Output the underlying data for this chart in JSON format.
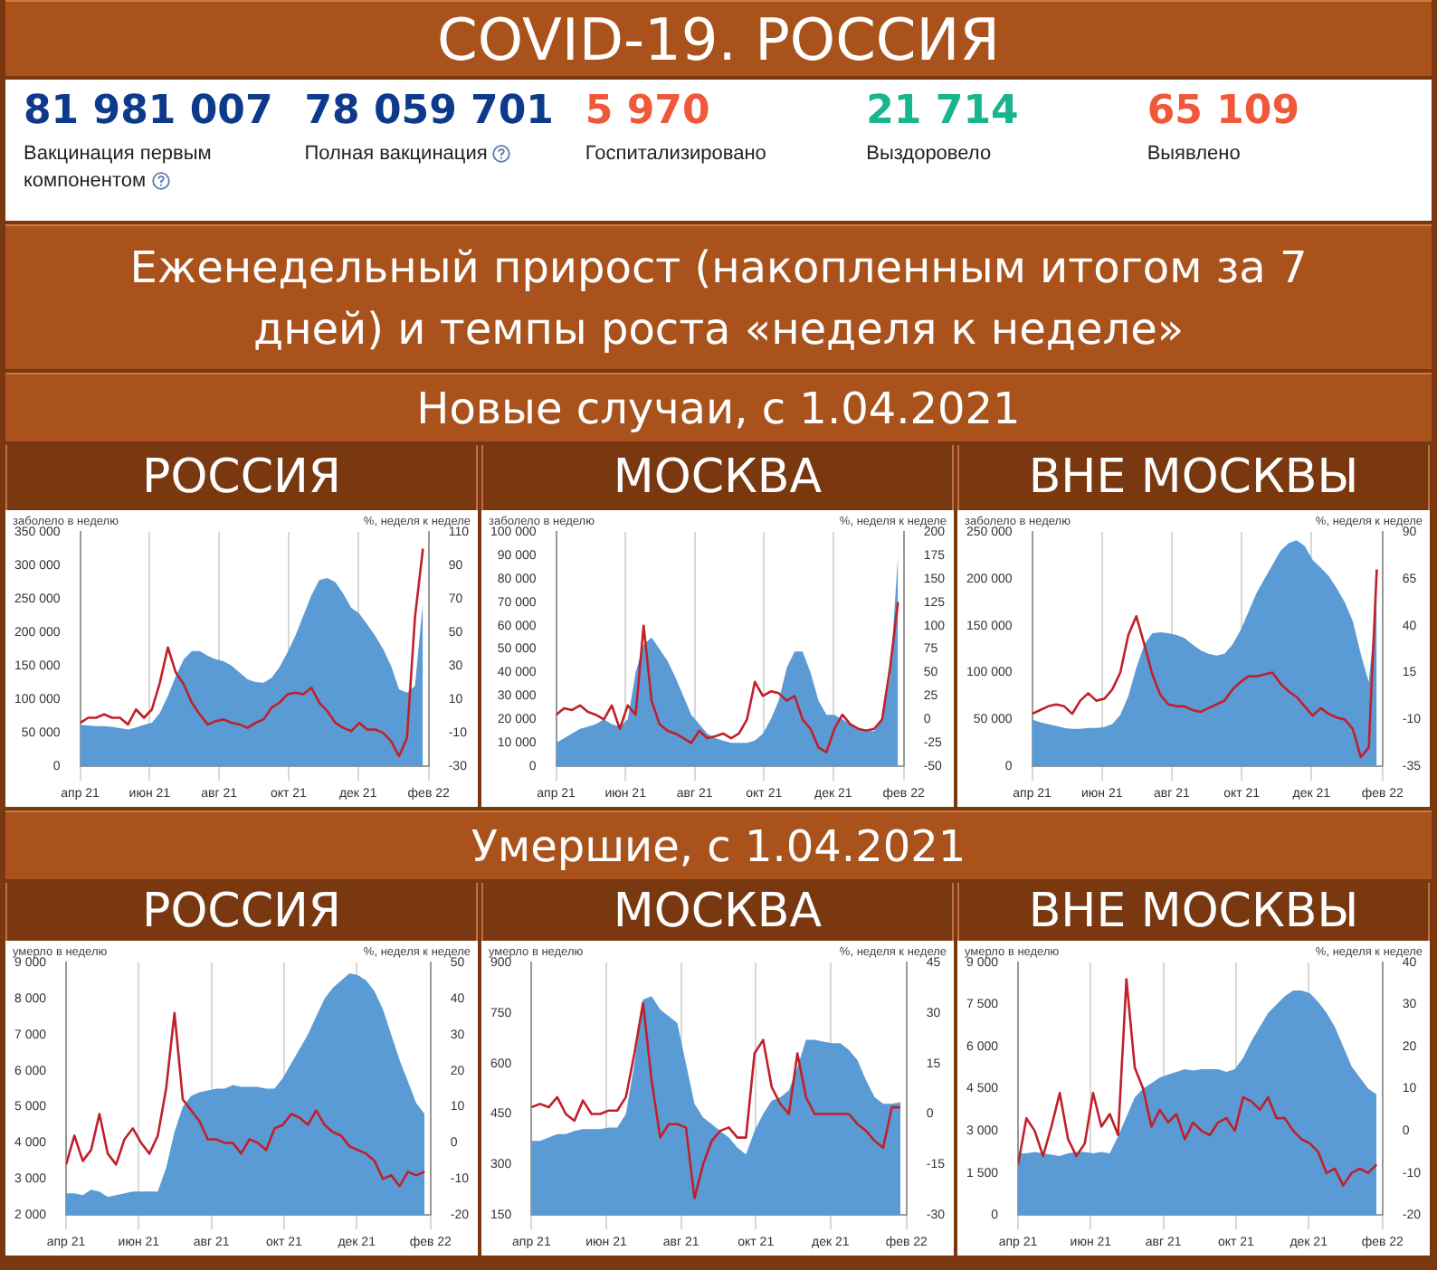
{
  "chart_data": [
    {
      "type": "other",
      "title": "COVID-19. РОССИЯ",
      "annotations": [
        "81 981 007",
        "Вакцинация первым компонентом",
        "78 059 701",
        "Полная вакцинация",
        "5 970",
        "Госпитализировано",
        "21 714",
        "Выздоровело",
        "65 109",
        "Выявлено"
      ],
      "colors": [
        "#0e3a8c",
        "#0e3a8c",
        "#f0583a",
        "#17b48e",
        "#f0583a"
      ],
      "subtitle": "Еженедельный прирост (накопленным итогом за 7 дней) и темпы роста «неделя к неделе»"
    },
    {
      "type": "other",
      "title": "Новые случаи, с 1.04.2021"
    },
    {
      "type": "area",
      "title": "РОССИЯ",
      "ylabel": "заболело в неделю",
      "y2label": "%, неделя к неделе",
      "grid": "x",
      "x": [
        "2021-04-01",
        "2021-04-08",
        "2021-04-15",
        "2021-04-22",
        "2021-04-29",
        "2021-05-06",
        "2021-05-13",
        "2021-05-20",
        "2021-05-27",
        "2021-06-03",
        "2021-06-10",
        "2021-06-17",
        "2021-06-24",
        "2021-07-01",
        "2021-07-08",
        "2021-07-15",
        "2021-07-22",
        "2021-07-29",
        "2021-08-05",
        "2021-08-12",
        "2021-08-19",
        "2021-08-26",
        "2021-09-02",
        "2021-09-09",
        "2021-09-16",
        "2021-09-23",
        "2021-09-30",
        "2021-10-07",
        "2021-10-14",
        "2021-10-21",
        "2021-10-28",
        "2021-11-04",
        "2021-11-11",
        "2021-11-18",
        "2021-11-25",
        "2021-12-02",
        "2021-12-09",
        "2021-12-16",
        "2021-12-23",
        "2021-12-30",
        "2022-01-06",
        "2022-01-13",
        "2022-01-20",
        "2022-01-27"
      ],
      "xlim": [
        "2021-04-01",
        "2022-02-01"
      ],
      "xticks": [
        {
          "value": "2021-04-01",
          "label": "апр 21"
        },
        {
          "value": "2021-06-01",
          "label": "июн 21"
        },
        {
          "value": "2021-08-01",
          "label": "авг 21"
        },
        {
          "value": "2021-10-01",
          "label": "окт 21"
        },
        {
          "value": "2021-12-01",
          "label": "дек 21"
        },
        {
          "value": "2022-02-01",
          "label": "фев 22"
        }
      ],
      "ylim": [
        0,
        350000
      ],
      "yticks": [
        0,
        {
          "value": 50000,
          "label": "50 000"
        },
        {
          "value": 100000,
          "label": "100 000"
        },
        {
          "value": 150000,
          "label": "150 000"
        },
        {
          "value": 200000,
          "label": "200 000"
        },
        {
          "value": 250000,
          "label": "250 000"
        },
        {
          "value": 300000,
          "label": "300 000"
        },
        {
          "value": 350000,
          "label": "350 000"
        }
      ],
      "y2lim": [
        -30,
        110
      ],
      "y2ticks": [
        -30,
        -10,
        10,
        30,
        50,
        70,
        90,
        110
      ],
      "series": [
        {
          "type": "area",
          "color": "#5b9bd5",
          "values": [
            62000,
            61000,
            60000,
            60000,
            59000,
            57000,
            55000,
            58000,
            62000,
            65000,
            80000,
            105000,
            135000,
            160000,
            172000,
            172000,
            165000,
            160000,
            157000,
            150000,
            140000,
            130000,
            126000,
            125000,
            132000,
            148000,
            170000,
            195000,
            225000,
            255000,
            278000,
            281000,
            275000,
            258000,
            237000,
            228000,
            212000,
            195000,
            175000,
            150000,
            115000,
            110000,
            120000,
            245000
          ]
        },
        {
          "type": "line",
          "axis": "y2",
          "color": "#c0202a",
          "values": [
            -4,
            -1,
            -1,
            1,
            -1,
            -1,
            -5,
            4,
            -1,
            4,
            20,
            41,
            26,
            19,
            8,
            1,
            -5,
            -3,
            -2,
            -4,
            -5,
            -7,
            -4,
            -2,
            5,
            8,
            13,
            14,
            13,
            17,
            8,
            3,
            -4,
            -7,
            -9,
            -4,
            -8,
            -8,
            -10,
            -15,
            -24,
            -13,
            59,
            100
          ]
        }
      ]
    },
    {
      "type": "area",
      "title": "МОСКВА",
      "ylabel": "заболело в неделю",
      "y2label": "%, неделя к неделе",
      "grid": "x",
      "x": [
        "2021-04-01",
        "2021-04-08",
        "2021-04-15",
        "2021-04-22",
        "2021-04-29",
        "2021-05-06",
        "2021-05-13",
        "2021-05-20",
        "2021-05-27",
        "2021-06-03",
        "2021-06-10",
        "2021-06-17",
        "2021-06-24",
        "2021-07-01",
        "2021-07-08",
        "2021-07-15",
        "2021-07-22",
        "2021-07-29",
        "2021-08-05",
        "2021-08-12",
        "2021-08-19",
        "2021-08-26",
        "2021-09-02",
        "2021-09-09",
        "2021-09-16",
        "2021-09-23",
        "2021-09-30",
        "2021-10-07",
        "2021-10-14",
        "2021-10-21",
        "2021-10-28",
        "2021-11-04",
        "2021-11-11",
        "2021-11-18",
        "2021-11-25",
        "2021-12-02",
        "2021-12-09",
        "2021-12-16",
        "2021-12-23",
        "2021-12-30",
        "2022-01-06",
        "2022-01-13",
        "2022-01-20",
        "2022-01-27"
      ],
      "xlim": [
        "2021-04-01",
        "2022-02-01"
      ],
      "xticks": [
        {
          "value": "2021-04-01",
          "label": "апр 21"
        },
        {
          "value": "2021-06-01",
          "label": "июн 21"
        },
        {
          "value": "2021-08-01",
          "label": "авг 21"
        },
        {
          "value": "2021-10-01",
          "label": "окт 21"
        },
        {
          "value": "2021-12-01",
          "label": "дек 21"
        },
        {
          "value": "2022-02-01",
          "label": "фев 22"
        }
      ],
      "ylim": [
        0,
        100000
      ],
      "yticks": [
        0,
        {
          "value": 10000,
          "label": "10 000"
        },
        {
          "value": 20000,
          "label": "20 000"
        },
        {
          "value": 30000,
          "label": "30 000"
        },
        {
          "value": 40000,
          "label": "40 000"
        },
        {
          "value": 50000,
          "label": "50 000"
        },
        {
          "value": 60000,
          "label": "60 000"
        },
        {
          "value": 70000,
          "label": "70 000"
        },
        {
          "value": 80000,
          "label": "80 000"
        },
        {
          "value": 90000,
          "label": "90 000"
        },
        {
          "value": 100000,
          "label": "100 000"
        }
      ],
      "y2lim": [
        -50,
        200
      ],
      "y2ticks": [
        -50,
        -25,
        0,
        25,
        50,
        75,
        100,
        125,
        150,
        175,
        200
      ],
      "series": [
        {
          "type": "area",
          "color": "#5b9bd5",
          "values": [
            10000,
            12000,
            14000,
            16000,
            17000,
            18000,
            20000,
            18000,
            17000,
            20000,
            40000,
            52000,
            55000,
            50000,
            45000,
            38000,
            30000,
            22000,
            18000,
            14000,
            12000,
            11000,
            10000,
            10000,
            10000,
            11000,
            14000,
            20000,
            28000,
            42000,
            49000,
            49000,
            40000,
            28000,
            22000,
            22000,
            20000,
            18000,
            16000,
            15000,
            15000,
            20000,
            38000,
            90000
          ]
        },
        {
          "type": "line",
          "axis": "y2",
          "color": "#c0202a",
          "values": [
            5,
            12,
            10,
            15,
            8,
            5,
            0,
            15,
            -10,
            15,
            5,
            100,
            20,
            -5,
            -12,
            -15,
            -20,
            -25,
            -12,
            -20,
            -18,
            -15,
            -20,
            -15,
            0,
            40,
            25,
            30,
            28,
            20,
            25,
            0,
            -10,
            -30,
            -35,
            -10,
            5,
            -5,
            -10,
            -12,
            -10,
            0,
            55,
            125
          ]
        }
      ]
    },
    {
      "type": "area",
      "title": "ВНЕ МОСКВЫ",
      "ylabel": "заболело в неделю",
      "y2label": "%, неделя к неделе",
      "grid": "x",
      "x": [
        "2021-04-01",
        "2021-04-08",
        "2021-04-15",
        "2021-04-22",
        "2021-04-29",
        "2021-05-06",
        "2021-05-13",
        "2021-05-20",
        "2021-05-27",
        "2021-06-03",
        "2021-06-10",
        "2021-06-17",
        "2021-06-24",
        "2021-07-01",
        "2021-07-08",
        "2021-07-15",
        "2021-07-22",
        "2021-07-29",
        "2021-08-05",
        "2021-08-12",
        "2021-08-19",
        "2021-08-26",
        "2021-09-02",
        "2021-09-09",
        "2021-09-16",
        "2021-09-23",
        "2021-09-30",
        "2021-10-07",
        "2021-10-14",
        "2021-10-21",
        "2021-10-28",
        "2021-11-04",
        "2021-11-11",
        "2021-11-18",
        "2021-11-25",
        "2021-12-02",
        "2021-12-09",
        "2021-12-16",
        "2021-12-23",
        "2021-12-30",
        "2022-01-06",
        "2022-01-13",
        "2022-01-20",
        "2022-01-27"
      ],
      "xlim": [
        "2021-04-01",
        "2022-02-01"
      ],
      "xticks": [
        {
          "value": "2021-04-01",
          "label": "апр 21"
        },
        {
          "value": "2021-06-01",
          "label": "июн 21"
        },
        {
          "value": "2021-08-01",
          "label": "авг 21"
        },
        {
          "value": "2021-10-01",
          "label": "окт 21"
        },
        {
          "value": "2021-12-01",
          "label": "дек 21"
        },
        {
          "value": "2022-02-01",
          "label": "фев 22"
        }
      ],
      "ylim": [
        0,
        250000
      ],
      "yticks": [
        0,
        {
          "value": 50000,
          "label": "50 000"
        },
        {
          "value": 100000,
          "label": "100 000"
        },
        {
          "value": 150000,
          "label": "150 000"
        },
        {
          "value": 200000,
          "label": "200 000"
        },
        {
          "value": 250000,
          "label": "250 000"
        }
      ],
      "y2lim": [
        -35,
        90
      ],
      "y2ticks": [
        -35,
        -10,
        15,
        40,
        65,
        90
      ],
      "series": [
        {
          "type": "area",
          "color": "#5b9bd5",
          "values": [
            50000,
            47000,
            45000,
            43000,
            41000,
            40000,
            40000,
            41000,
            41000,
            42000,
            45000,
            55000,
            75000,
            105000,
            130000,
            142000,
            143000,
            142000,
            140000,
            137000,
            130000,
            124000,
            120000,
            118000,
            120000,
            130000,
            145000,
            165000,
            185000,
            200000,
            215000,
            230000,
            238000,
            241000,
            235000,
            220000,
            212000,
            203000,
            190000,
            175000,
            155000,
            120000,
            90000,
            180000
          ]
        },
        {
          "type": "line",
          "axis": "y2",
          "color": "#c0202a",
          "values": [
            -7,
            -5,
            -3,
            -2,
            -3,
            -7,
            0,
            4,
            0,
            1,
            6,
            15,
            35,
            45,
            30,
            14,
            3,
            -2,
            -3,
            -3,
            -5,
            -6,
            -4,
            -2,
            0,
            6,
            10,
            13,
            13,
            14,
            15,
            9,
            5,
            2,
            -3,
            -8,
            -4,
            -7,
            -9,
            -10,
            -15,
            -30,
            -25,
            70
          ]
        }
      ]
    },
    {
      "type": "other",
      "title": "Умершие, с 1.04.2021"
    },
    {
      "type": "area",
      "title": "РОССИЯ",
      "ylabel": "умерло в неделю",
      "y2label": "%, неделя к неделе",
      "grid": "x",
      "x": [
        "2021-04-01",
        "2021-04-08",
        "2021-04-15",
        "2021-04-22",
        "2021-04-29",
        "2021-05-06",
        "2021-05-13",
        "2021-05-20",
        "2021-05-27",
        "2021-06-03",
        "2021-06-10",
        "2021-06-17",
        "2021-06-24",
        "2021-07-01",
        "2021-07-08",
        "2021-07-15",
        "2021-07-22",
        "2021-07-29",
        "2021-08-05",
        "2021-08-12",
        "2021-08-19",
        "2021-08-26",
        "2021-09-02",
        "2021-09-09",
        "2021-09-16",
        "2021-09-23",
        "2021-09-30",
        "2021-10-07",
        "2021-10-14",
        "2021-10-21",
        "2021-10-28",
        "2021-11-04",
        "2021-11-11",
        "2021-11-18",
        "2021-11-25",
        "2021-12-02",
        "2021-12-09",
        "2021-12-16",
        "2021-12-23",
        "2021-12-30",
        "2022-01-06",
        "2022-01-13",
        "2022-01-20",
        "2022-01-27"
      ],
      "xlim": [
        "2021-04-01",
        "2022-02-01"
      ],
      "xticks": [
        {
          "value": "2021-04-01",
          "label": "апр 21"
        },
        {
          "value": "2021-06-01",
          "label": "июн 21"
        },
        {
          "value": "2021-08-01",
          "label": "авг 21"
        },
        {
          "value": "2021-10-01",
          "label": "окт 21"
        },
        {
          "value": "2021-12-01",
          "label": "дек 21"
        },
        {
          "value": "2022-02-01",
          "label": "фев 22"
        }
      ],
      "ylim": [
        2000,
        9000
      ],
      "yticks": [
        {
          "value": 2000,
          "label": "2 000"
        },
        {
          "value": 3000,
          "label": "3 000"
        },
        {
          "value": 4000,
          "label": "4 000"
        },
        {
          "value": 5000,
          "label": "5 000"
        },
        {
          "value": 6000,
          "label": "6 000"
        },
        {
          "value": 7000,
          "label": "7 000"
        },
        {
          "value": 8000,
          "label": "8 000"
        },
        {
          "value": 9000,
          "label": "9 000"
        }
      ],
      "y2lim": [
        -20,
        50
      ],
      "y2ticks": [
        -20,
        -10,
        0,
        10,
        20,
        30,
        40,
        50
      ],
      "series": [
        {
          "type": "area",
          "color": "#5b9bd5",
          "values": [
            2600,
            2600,
            2550,
            2700,
            2650,
            2500,
            2550,
            2600,
            2650,
            2650,
            2650,
            2650,
            3300,
            4300,
            5000,
            5300,
            5400,
            5450,
            5500,
            5500,
            5600,
            5550,
            5550,
            5550,
            5500,
            5500,
            5800,
            6200,
            6600,
            7000,
            7500,
            8000,
            8300,
            8500,
            8700,
            8650,
            8500,
            8200,
            7700,
            7000,
            6300,
            5700,
            5100,
            4800
          ]
        },
        {
          "type": "line",
          "axis": "y2",
          "color": "#c0202a",
          "values": [
            -6,
            2,
            -5,
            -2,
            8,
            -3,
            -6,
            1,
            4,
            0,
            -3,
            2,
            15,
            36,
            12,
            9,
            6,
            1,
            1,
            0,
            0,
            -3,
            1,
            0,
            -2,
            4,
            5,
            8,
            7,
            5,
            9,
            5,
            3,
            2,
            -1,
            -2,
            -3,
            -5,
            -10,
            -9,
            -12,
            -8,
            -9,
            -8
          ]
        }
      ]
    },
    {
      "type": "area",
      "title": "МОСКВА",
      "ylabel": "умерло в неделю",
      "y2label": "%, неделя к неделе",
      "grid": "x",
      "x": [
        "2021-04-01",
        "2021-04-08",
        "2021-04-15",
        "2021-04-22",
        "2021-04-29",
        "2021-05-06",
        "2021-05-13",
        "2021-05-20",
        "2021-05-27",
        "2021-06-03",
        "2021-06-10",
        "2021-06-17",
        "2021-06-24",
        "2021-07-01",
        "2021-07-08",
        "2021-07-15",
        "2021-07-22",
        "2021-07-29",
        "2021-08-05",
        "2021-08-12",
        "2021-08-19",
        "2021-08-26",
        "2021-09-02",
        "2021-09-09",
        "2021-09-16",
        "2021-09-23",
        "2021-09-30",
        "2021-10-07",
        "2021-10-14",
        "2021-10-21",
        "2021-10-28",
        "2021-11-04",
        "2021-11-11",
        "2021-11-18",
        "2021-11-25",
        "2021-12-02",
        "2021-12-09",
        "2021-12-16",
        "2021-12-23",
        "2021-12-30",
        "2022-01-06",
        "2022-01-13",
        "2022-01-20",
        "2022-01-27"
      ],
      "xlim": [
        "2021-04-01",
        "2022-02-01"
      ],
      "xticks": [
        {
          "value": "2021-04-01",
          "label": "апр 21"
        },
        {
          "value": "2021-06-01",
          "label": "июн 21"
        },
        {
          "value": "2021-08-01",
          "label": "авг 21"
        },
        {
          "value": "2021-10-01",
          "label": "окт 21"
        },
        {
          "value": "2021-12-01",
          "label": "дек 21"
        },
        {
          "value": "2022-02-01",
          "label": "фев 22"
        }
      ],
      "ylim": [
        150,
        900
      ],
      "yticks": [
        150,
        300,
        450,
        600,
        750,
        900
      ],
      "y2lim": [
        -30,
        45
      ],
      "y2ticks": [
        -30,
        -15,
        0,
        15,
        30,
        45
      ],
      "series": [
        {
          "type": "area",
          "color": "#5b9bd5",
          "values": [
            370,
            370,
            380,
            390,
            390,
            400,
            405,
            405,
            405,
            410,
            410,
            450,
            600,
            790,
            800,
            760,
            740,
            720,
            600,
            480,
            440,
            420,
            400,
            380,
            350,
            330,
            400,
            450,
            490,
            500,
            520,
            590,
            670,
            670,
            665,
            660,
            660,
            640,
            610,
            550,
            500,
            480,
            480,
            485
          ]
        },
        {
          "type": "line",
          "axis": "y2",
          "color": "#c0202a",
          "values": [
            2,
            3,
            2,
            5,
            0,
            -2,
            4,
            0,
            0,
            1,
            1,
            5,
            18,
            33,
            10,
            -7,
            -3,
            -3,
            -4,
            -25,
            -15,
            -8,
            -5,
            -4,
            -7,
            -7,
            18,
            22,
            8,
            3,
            0,
            18,
            5,
            0,
            0,
            0,
            0,
            0,
            -3,
            -5,
            -8,
            -10,
            2,
            2
          ]
        }
      ]
    },
    {
      "type": "area",
      "title": "ВНЕ МОСКВЫ",
      "ylabel": "умерло в неделю",
      "y2label": "%, неделя к неделе",
      "grid": "x",
      "x": [
        "2021-04-01",
        "2021-04-08",
        "2021-04-15",
        "2021-04-22",
        "2021-04-29",
        "2021-05-06",
        "2021-05-13",
        "2021-05-20",
        "2021-05-27",
        "2021-06-03",
        "2021-06-10",
        "2021-06-17",
        "2021-06-24",
        "2021-07-01",
        "2021-07-08",
        "2021-07-15",
        "2021-07-22",
        "2021-07-29",
        "2021-08-05",
        "2021-08-12",
        "2021-08-19",
        "2021-08-26",
        "2021-09-02",
        "2021-09-09",
        "2021-09-16",
        "2021-09-23",
        "2021-09-30",
        "2021-10-07",
        "2021-10-14",
        "2021-10-21",
        "2021-10-28",
        "2021-11-04",
        "2021-11-11",
        "2021-11-18",
        "2021-11-25",
        "2021-12-02",
        "2021-12-09",
        "2021-12-16",
        "2021-12-23",
        "2021-12-30",
        "2022-01-06",
        "2022-01-13",
        "2022-01-20",
        "2022-01-27"
      ],
      "xlim": [
        "2021-04-01",
        "2022-02-01"
      ],
      "xticks": [
        {
          "value": "2021-04-01",
          "label": "апр 21"
        },
        {
          "value": "2021-06-01",
          "label": "июн 21"
        },
        {
          "value": "2021-08-01",
          "label": "авг 21"
        },
        {
          "value": "2021-10-01",
          "label": "окт 21"
        },
        {
          "value": "2021-12-01",
          "label": "дек 21"
        },
        {
          "value": "2022-02-01",
          "label": "фев 22"
        }
      ],
      "ylim": [
        0,
        9000
      ],
      "yticks": [
        0,
        {
          "value": 1500,
          "label": "1 500"
        },
        {
          "value": 3000,
          "label": "3 000"
        },
        {
          "value": 4500,
          "label": "4 500"
        },
        {
          "value": 6000,
          "label": "6 000"
        },
        {
          "value": 7500,
          "label": "7 500"
        },
        {
          "value": 9000,
          "label": "9 000"
        }
      ],
      "y2lim": [
        -20,
        40
      ],
      "y2ticks": [
        -20,
        -10,
        0,
        10,
        20,
        30,
        40
      ],
      "series": [
        {
          "type": "area",
          "color": "#5b9bd5",
          "values": [
            2200,
            2200,
            2250,
            2200,
            2150,
            2100,
            2200,
            2250,
            2250,
            2200,
            2250,
            2200,
            2800,
            3500,
            4200,
            4500,
            4700,
            4900,
            5000,
            5100,
            5200,
            5150,
            5200,
            5200,
            5200,
            5100,
            5200,
            5600,
            6200,
            6700,
            7200,
            7500,
            7800,
            8000,
            8000,
            7900,
            7600,
            7200,
            6700,
            6000,
            5300,
            4900,
            4500,
            4300
          ]
        },
        {
          "type": "line",
          "axis": "y2",
          "color": "#c0202a",
          "values": [
            -8,
            3,
            0,
            -6,
            1,
            9,
            -2,
            -6,
            -3,
            9,
            1,
            4,
            -1,
            36,
            15,
            10,
            1,
            5,
            2,
            4,
            -2,
            2,
            0,
            -1,
            2,
            3,
            0,
            8,
            7,
            5,
            8,
            3,
            3,
            0,
            -2,
            -3,
            -5,
            -10,
            -9,
            -13,
            -10,
            -9,
            -10,
            -8
          ]
        }
      ]
    }
  ]
}
